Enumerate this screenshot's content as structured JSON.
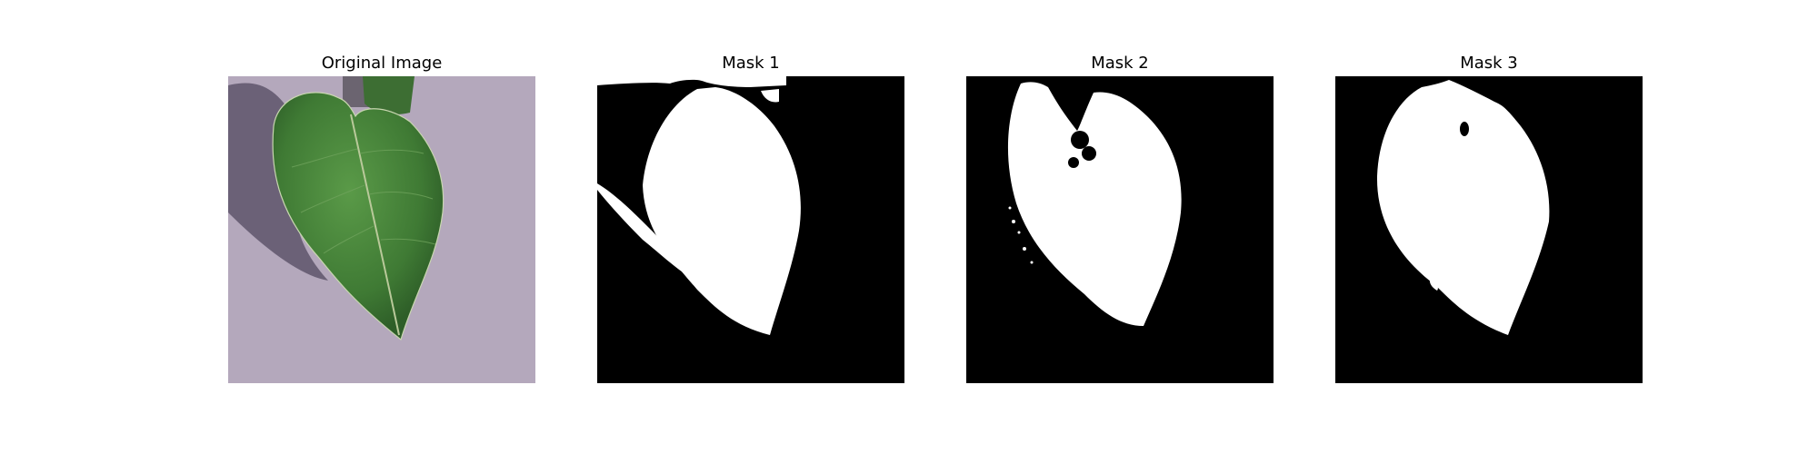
{
  "panels": [
    {
      "title": "Original Image",
      "kind": "photo"
    },
    {
      "title": "Mask 1",
      "kind": "mask"
    },
    {
      "title": "Mask 2",
      "kind": "mask"
    },
    {
      "title": "Mask 3",
      "kind": "mask"
    }
  ],
  "colors": {
    "background": "#ffffff",
    "mask_background": "#000000",
    "mask_foreground": "#ffffff",
    "leaf_green": "#3f7a34",
    "ground": "#b4a8bc",
    "shadow": "#5e556b"
  }
}
